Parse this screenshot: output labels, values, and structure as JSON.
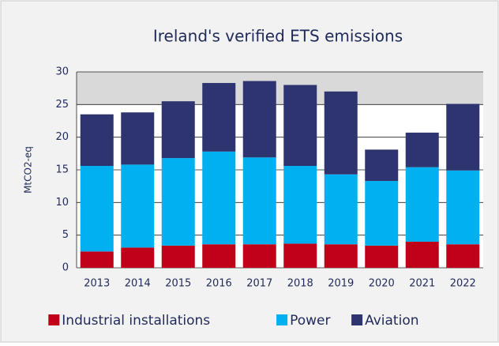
{
  "chart_data": {
    "type": "stacked_bar",
    "title": "Ireland's verified ETS emissions",
    "y_label": "MtCO2-eq",
    "categories": [
      "2013",
      "2014",
      "2015",
      "2016",
      "2017",
      "2018",
      "2019",
      "2020",
      "2021",
      "2022"
    ],
    "series": [
      {
        "name": "Industrial installations",
        "color": "#c00018",
        "values": [
          2.5,
          3.1,
          3.4,
          3.6,
          3.6,
          3.7,
          3.6,
          3.4,
          4.0,
          3.6
        ]
      },
      {
        "name": "Power",
        "color": "#00b0f0",
        "values": [
          13.1,
          12.7,
          13.4,
          14.2,
          13.3,
          11.9,
          10.7,
          9.9,
          11.4,
          11.3
        ]
      },
      {
        "name": "Aviation",
        "color": "#2e3470",
        "values": [
          7.9,
          8.0,
          8.7,
          10.5,
          11.7,
          12.4,
          12.7,
          4.8,
          5.3,
          10.2
        ]
      }
    ],
    "ylim": [
      0,
      30
    ],
    "yticks": [
      0,
      5,
      10,
      15,
      20,
      25,
      30
    ],
    "grid": true,
    "legend": "bottom"
  }
}
